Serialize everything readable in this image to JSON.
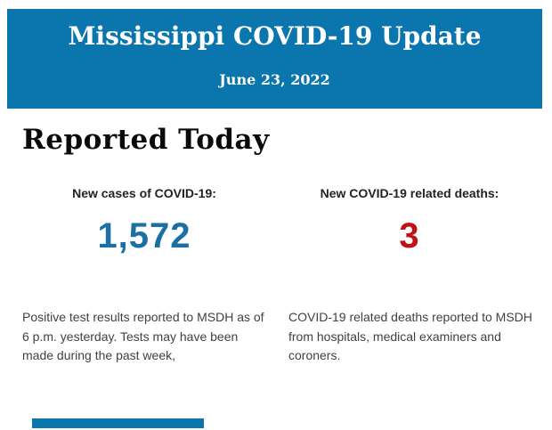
{
  "colors": {
    "header_background": "#0b75ae",
    "cases_value_color": "#1a6fa4",
    "deaths_value_color": "#bf1116",
    "heading_text": "#0a0a0a",
    "label_text": "#222222",
    "body_text": "#414141",
    "page_background": "#ffffff"
  },
  "header": {
    "title": "Mississippi COVID-19 Update",
    "date": "June 23, 2022"
  },
  "section": {
    "heading": "Reported Today"
  },
  "stats": [
    {
      "label": "New cases of COVID-19:",
      "value": "1,572",
      "description": "Positive test results reported to MSDH as of 6 p.m. yesterday. Tests may have been made during the past week,"
    },
    {
      "label": "New COVID-19 related deaths:",
      "value": "3",
      "description": "COVID-19 related deaths reported to MSDH from hospitals, medical examiners and coroners."
    }
  ]
}
